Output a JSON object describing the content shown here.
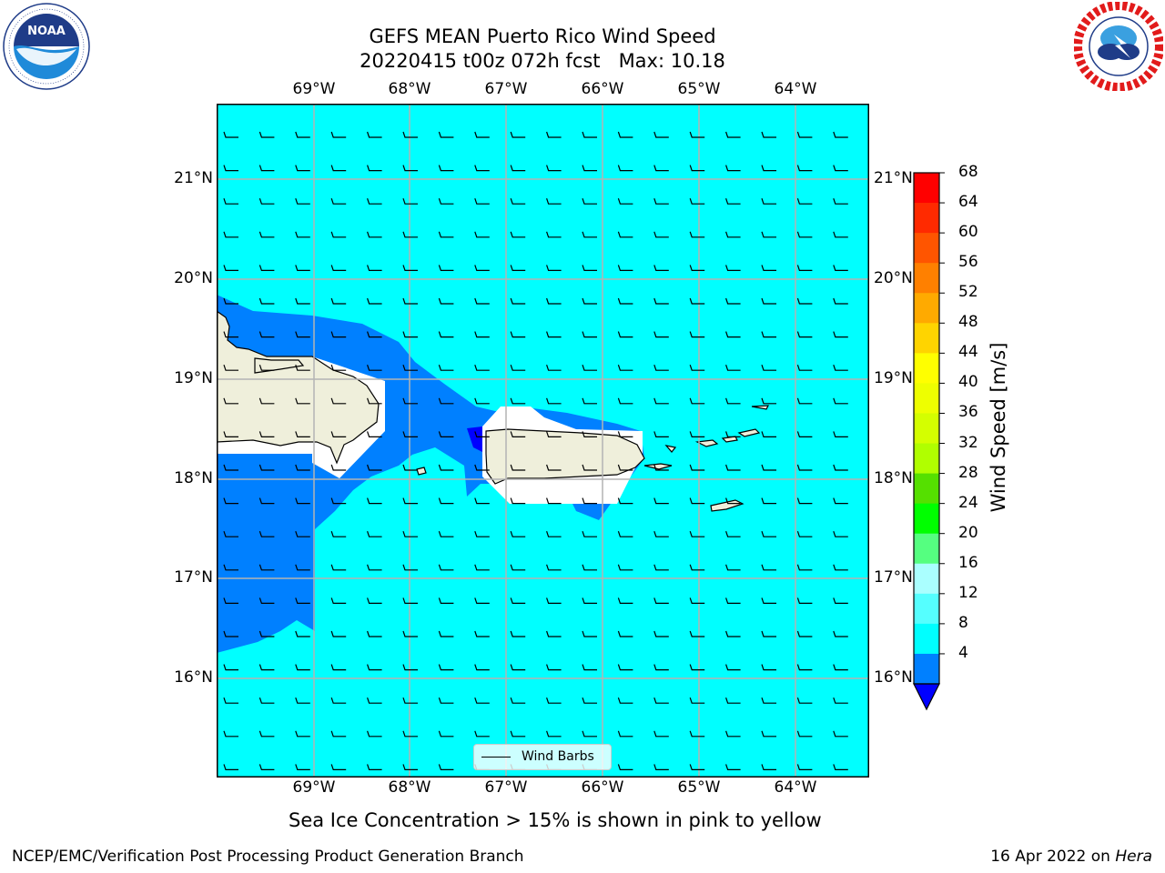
{
  "title": {
    "line1": "GEFS MEAN Puerto Rico Wind Speed",
    "line2": "20220415 t00z 072h fcst   Max: 10.18"
  },
  "logos": {
    "left": {
      "icon": "noaa-logo",
      "text": "NOAA",
      "ring_text": "NATIONAL OCEANIC AND ATMOSPHERIC ADMINISTRATION · U.S. DEPARTMENT OF COMMERCE"
    },
    "right": {
      "icon": "nws-logo",
      "ring_text": "NATIONAL WEATHER SERVICE"
    }
  },
  "map": {
    "lon_ticks": [
      "69°W",
      "68°W",
      "67°W",
      "66°W",
      "65°W",
      "64°W"
    ],
    "lat_ticks": [
      "21°N",
      "20°N",
      "19°N",
      "18°N",
      "17°N",
      "16°N"
    ],
    "ocean_color": "#00ffff",
    "low_wind_color": "#0080ff",
    "lowest_wind_color": "#0000ff",
    "land_color": "#efefdb",
    "legend_label": "Wind Barbs"
  },
  "colorbar": {
    "label": "Wind Speed [m/s]",
    "ticks": [
      "68",
      "64",
      "60",
      "56",
      "52",
      "48",
      "44",
      "40",
      "36",
      "32",
      "28",
      "24",
      "20",
      "16",
      "12",
      "8",
      "4"
    ],
    "colors_top_to_bottom": [
      "#ff0000",
      "#ff2a00",
      "#ff5500",
      "#ff8000",
      "#ffaa00",
      "#ffd400",
      "#ffff00",
      "#eeff00",
      "#d4ff00",
      "#b0ff00",
      "#55e000",
      "#00ff00",
      "#55ff80",
      "#aaffff",
      "#55ffff",
      "#00ffff",
      "#0080ff"
    ],
    "extend_color": "#0000ff"
  },
  "caption": "Sea Ice Concentration > 15% is shown in pink to yellow",
  "footer": {
    "left": "NCEP/EMC/Verification Post Processing Product Generation Branch",
    "right_prefix": "16 Apr 2022 on ",
    "right_host": "Hera"
  }
}
